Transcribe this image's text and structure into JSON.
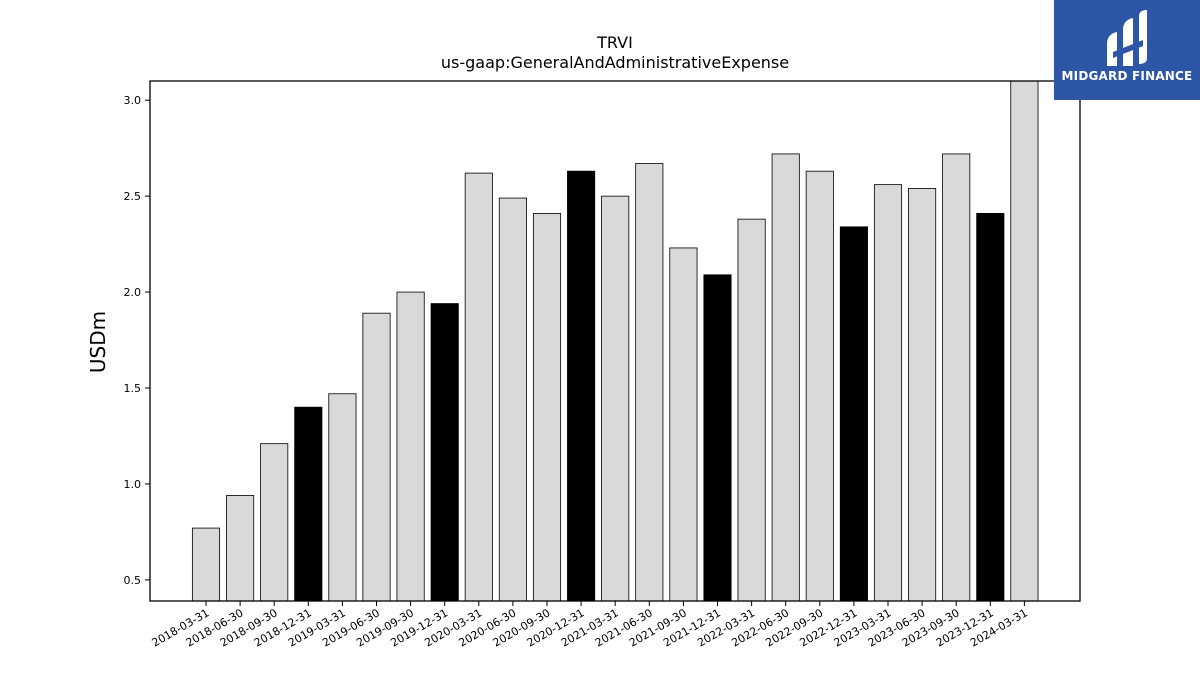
{
  "brand": {
    "name": "MIDGARD FINANCE",
    "bg_color": "#2e56a6"
  },
  "chart_data": {
    "type": "bar",
    "title": "TRVI",
    "subtitle": "us-gaap:GeneralAndAdministrativeExpense",
    "xlabel": "",
    "ylabel": "USDm",
    "ylim": [
      0.39,
      3.1
    ],
    "yticks": [
      "0.5",
      "1.0",
      "1.5",
      "2.0",
      "2.5",
      "3.0"
    ],
    "grid": false,
    "colors": {
      "quarter": "#d9d9d9",
      "year_end": "#000000",
      "edge": "#000000"
    },
    "categories": [
      "2018-03-31",
      "2018-06-30",
      "2018-09-30",
      "2018-12-31",
      "2019-03-31",
      "2019-06-30",
      "2019-09-30",
      "2019-12-31",
      "2020-03-31",
      "2020-06-30",
      "2020-09-30",
      "2020-12-31",
      "2021-03-31",
      "2021-06-30",
      "2021-09-30",
      "2021-12-31",
      "2022-03-31",
      "2022-06-30",
      "2022-09-30",
      "2022-12-31",
      "2023-03-31",
      "2023-06-30",
      "2023-09-30",
      "2023-12-31",
      "2024-03-31"
    ],
    "values": [
      0.77,
      0.94,
      1.21,
      1.4,
      1.47,
      1.89,
      2.0,
      1.94,
      2.62,
      2.49,
      2.41,
      2.63,
      2.5,
      2.67,
      2.23,
      2.09,
      2.38,
      2.72,
      2.63,
      2.34,
      2.56,
      2.54,
      2.72,
      2.41,
      3.1
    ]
  }
}
